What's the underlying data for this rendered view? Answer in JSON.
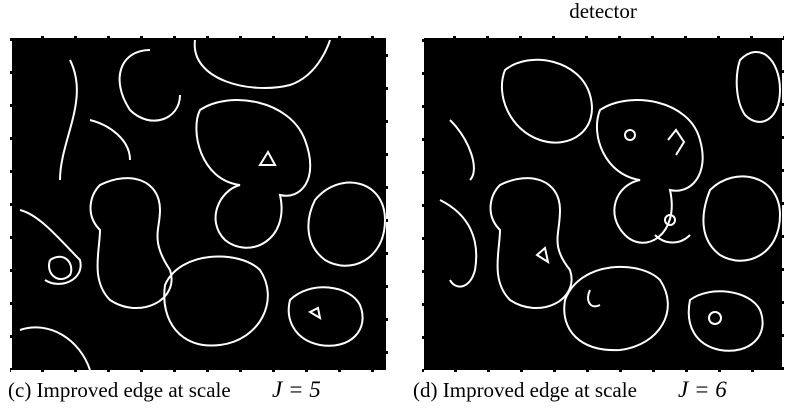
{
  "header": {
    "text": "detector"
  },
  "figures": [
    {
      "caption": {
        "text": "(c) Improved edge at scale",
        "math": "J = 5"
      }
    },
    {
      "caption": {
        "text": "(d) Improved edge at scale",
        "math": "J = 6"
      }
    }
  ]
}
